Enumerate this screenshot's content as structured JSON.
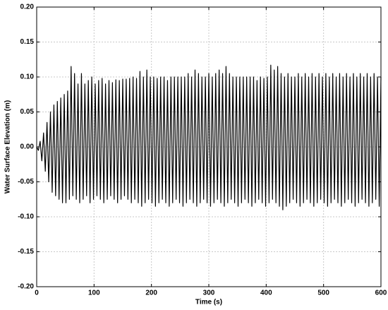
{
  "chart_data": {
    "type": "line",
    "x_label": "Time (s)",
    "y_label": "Water Surface Elevation (m)",
    "color": "#000000",
    "grid": true,
    "xlim": [
      0,
      600
    ],
    "xticks": [
      0,
      100,
      200,
      300,
      400,
      500,
      600
    ],
    "ylim": [
      -0.2,
      0.2
    ],
    "yticks": [
      {
        "value": -0.2,
        "label": "-0.20"
      },
      {
        "value": -0.15,
        "label": "-0.15"
      },
      {
        "value": -0.1,
        "label": "-0.10"
      },
      {
        "value": -0.05,
        "label": "-0.05"
      },
      {
        "value": 0,
        "label": "0.00"
      },
      {
        "value": 0.05,
        "label": "0.05"
      },
      {
        "value": 0.1,
        "label": "0.10"
      },
      {
        "value": 0.15,
        "label": "0.15"
      },
      {
        "value": 0.2,
        "label": "0.20"
      }
    ],
    "x": [
      0,
      3,
      6,
      9,
      12,
      15,
      18,
      21,
      24,
      27,
      30,
      33,
      36,
      39,
      42,
      45,
      48,
      51,
      54,
      57,
      60,
      63,
      66,
      69,
      72,
      75,
      78,
      81,
      84,
      87,
      90,
      93,
      96,
      99,
      102,
      105,
      108,
      111,
      114,
      117,
      120,
      123,
      126,
      129,
      132,
      135,
      138,
      141,
      144,
      147,
      150,
      153,
      156,
      159,
      162,
      165,
      168,
      171,
      174,
      177,
      180,
      183,
      186,
      189,
      192,
      195,
      198,
      201,
      204,
      207,
      210,
      213,
      216,
      219,
      222,
      225,
      228,
      231,
      234,
      237,
      240,
      243,
      246,
      249,
      252,
      255,
      258,
      261,
      264,
      267,
      270,
      273,
      276,
      279,
      282,
      285,
      288,
      291,
      294,
      297,
      300,
      303,
      306,
      309,
      312,
      315,
      318,
      321,
      324,
      327,
      330,
      333,
      336,
      339,
      342,
      345,
      348,
      351,
      354,
      357,
      360,
      363,
      366,
      369,
      372,
      375,
      378,
      381,
      384,
      387,
      390,
      393,
      396,
      399,
      402,
      405,
      408,
      411,
      414,
      417,
      420,
      423,
      426,
      429,
      432,
      435,
      438,
      441,
      444,
      447,
      450,
      453,
      456,
      459,
      462,
      465,
      468,
      471,
      474,
      477,
      480,
      483,
      486,
      489,
      492,
      495,
      498,
      501,
      504,
      507,
      510,
      513,
      516,
      519,
      522,
      525,
      528,
      531,
      534,
      537,
      540,
      543,
      546,
      549,
      552,
      555,
      558,
      561,
      564,
      567,
      570,
      573,
      576,
      579,
      582,
      585,
      588,
      591,
      594,
      597,
      600
    ],
    "values": [
      0,
      -0.005,
      0.008,
      -0.02,
      0.02,
      -0.035,
      0.035,
      -0.05,
      0.05,
      -0.065,
      0.06,
      -0.07,
      0.065,
      -0.075,
      0.07,
      -0.08,
      0.075,
      -0.08,
      0.08,
      -0.075,
      0.115,
      -0.07,
      0.105,
      -0.075,
      0.09,
      -0.08,
      0.105,
      -0.075,
      0.09,
      -0.07,
      0.095,
      -0.08,
      0.1,
      -0.075,
      0.09,
      -0.07,
      0.095,
      -0.075,
      0.098,
      -0.08,
      0.09,
      -0.075,
      0.095,
      -0.07,
      0.092,
      -0.075,
      0.096,
      -0.08,
      0.095,
      -0.075,
      0.097,
      -0.07,
      0.097,
      -0.075,
      0.098,
      -0.08,
      0.1,
      -0.075,
      0.098,
      -0.08,
      0.108,
      -0.085,
      0.1,
      -0.08,
      0.11,
      -0.075,
      0.1,
      -0.08,
      0.1,
      -0.085,
      0.098,
      -0.08,
      0.1,
      -0.075,
      0.1,
      -0.08,
      0.095,
      -0.085,
      0.1,
      -0.08,
      0.1,
      -0.075,
      0.1,
      -0.08,
      0.1,
      -0.085,
      0.1,
      -0.08,
      0.105,
      -0.075,
      0.1,
      -0.08,
      0.11,
      -0.085,
      0.105,
      -0.08,
      0.1,
      -0.075,
      0.1,
      -0.08,
      0.105,
      -0.085,
      0.1,
      -0.08,
      0.105,
      -0.075,
      0.11,
      -0.08,
      0.105,
      -0.085,
      0.115,
      -0.08,
      0.105,
      -0.075,
      0.1,
      -0.08,
      0.1,
      -0.085,
      0.1,
      -0.08,
      0.1,
      -0.075,
      0.1,
      -0.08,
      0.1,
      -0.085,
      0.1,
      -0.08,
      0.095,
      -0.075,
      0.1,
      -0.08,
      0.098,
      -0.085,
      0.1,
      -0.08,
      0.117,
      -0.075,
      0.11,
      -0.08,
      0.115,
      -0.085,
      0.105,
      -0.09,
      0.1,
      -0.085,
      0.105,
      -0.08,
      0.1,
      -0.075,
      0.1,
      -0.08,
      0.105,
      -0.085,
      0.1,
      -0.08,
      0.105,
      -0.075,
      0.1,
      -0.08,
      0.105,
      -0.085,
      0.1,
      -0.08,
      0.105,
      -0.075,
      0.1,
      -0.08,
      0.105,
      -0.085,
      0.1,
      -0.08,
      0.105,
      -0.075,
      0.1,
      -0.08,
      0.105,
      -0.085,
      0.1,
      -0.08,
      0.105,
      -0.075,
      0.1,
      -0.08,
      0.105,
      -0.085,
      0.1,
      -0.08,
      0.105,
      -0.075,
      0.1,
      -0.08,
      0.105,
      -0.085,
      0.1,
      -0.08,
      0.105,
      -0.075,
      0.1,
      -0.085,
      0.1
    ]
  }
}
